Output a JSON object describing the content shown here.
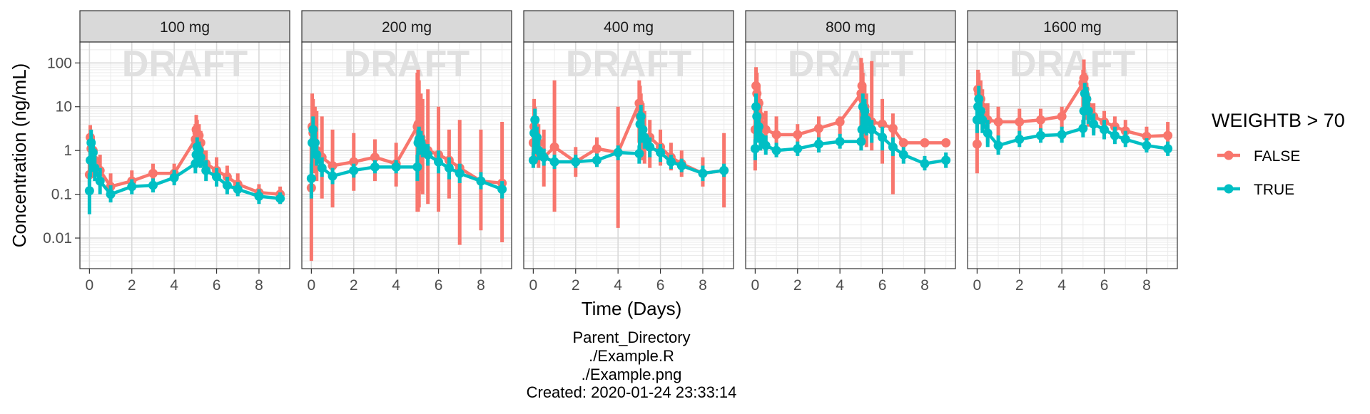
{
  "chart_data": {
    "type": "line",
    "title": "",
    "xlabel": "Time (Days)",
    "ylabel": "Concentration (ng/mL)",
    "y_scale": "log10",
    "ylim": [
      0.002,
      300
    ],
    "xlim": [
      -0.45,
      9.45
    ],
    "x_ticks": [
      0,
      2,
      4,
      6,
      8
    ],
    "x_tick_labels": [
      "0",
      "2",
      "4",
      "6",
      "8"
    ],
    "y_ticks": [
      0.01,
      0.1,
      1,
      10,
      100
    ],
    "y_tick_labels": [
      "0.01",
      "0.1",
      "1",
      "10",
      "100"
    ],
    "grid": true,
    "watermark": "DRAFT",
    "error_bars": true,
    "legend": {
      "title": "WEIGHTB > 70",
      "position": "right",
      "entries": [
        "FALSE",
        "TRUE"
      ]
    },
    "series_colors": {
      "FALSE": "#F8766D",
      "TRUE": "#00BFC4"
    },
    "panels": [
      {
        "label": "100 mg",
        "series": [
          {
            "name": "FALSE",
            "x": [
              0,
              0.04,
              0.08,
              0.17,
              0.25,
              0.5,
              1,
              2,
              3,
              4,
              5,
              5.04,
              5.08,
              5.17,
              5.25,
              5.5,
              6,
              6.5,
              7,
              8,
              9
            ],
            "y": [
              0.28,
              2.0,
              1.1,
              1.0,
              0.6,
              0.35,
              0.15,
              0.2,
              0.3,
              0.3,
              1.8,
              3.0,
              2.5,
              2.2,
              1.5,
              0.5,
              0.35,
              0.25,
              0.17,
              0.11,
              0.1
            ],
            "ylo": [
              0.16,
              1.0,
              0.6,
              0.5,
              0.3,
              0.15,
              0.08,
              0.12,
              0.18,
              0.18,
              1.0,
              1.5,
              1.3,
              1.2,
              0.8,
              0.3,
              0.2,
              0.15,
              0.1,
              0.07,
              0.06
            ],
            "yhi": [
              0.5,
              3.8,
              2.0,
              2.0,
              1.2,
              0.8,
              0.3,
              0.35,
              0.5,
              0.5,
              4.0,
              6.5,
              5.0,
              4.0,
              2.8,
              1.0,
              0.7,
              0.45,
              0.3,
              0.17,
              0.15
            ]
          },
          {
            "name": "TRUE",
            "x": [
              0,
              0.04,
              0.08,
              0.17,
              0.25,
              0.5,
              1,
              2,
              3,
              4,
              5,
              5.04,
              5.08,
              5.17,
              5.25,
              5.5,
              6,
              6.5,
              7,
              8,
              9
            ],
            "y": [
              0.12,
              0.6,
              1.5,
              0.9,
              0.4,
              0.2,
              0.1,
              0.15,
              0.16,
              0.24,
              0.5,
              0.8,
              1.2,
              1.0,
              0.7,
              0.35,
              0.25,
              0.16,
              0.13,
              0.09,
              0.08
            ],
            "ylo": [
              0.035,
              0.25,
              0.6,
              0.4,
              0.2,
              0.1,
              0.065,
              0.1,
              0.11,
              0.16,
              0.3,
              0.5,
              0.7,
              0.6,
              0.4,
              0.2,
              0.15,
              0.1,
              0.09,
              0.06,
              0.06
            ],
            "yhi": [
              0.3,
              1.4,
              3.0,
              1.8,
              0.8,
              0.4,
              0.16,
              0.22,
              0.23,
              0.36,
              0.8,
              1.3,
              2.0,
              1.6,
              1.1,
              0.6,
              0.4,
              0.25,
              0.19,
              0.13,
              0.11
            ]
          }
        ]
      },
      {
        "label": "200 mg",
        "series": [
          {
            "name": "FALSE",
            "x": [
              0,
              0.04,
              0.08,
              0.17,
              0.25,
              0.5,
              1,
              2,
              3,
              4,
              5,
              5.04,
              5.08,
              5.17,
              5.25,
              5.5,
              6,
              6.5,
              7,
              8,
              9
            ],
            "y": [
              0.14,
              3.5,
              2.5,
              1.5,
              1.0,
              0.7,
              0.45,
              0.55,
              0.7,
              0.5,
              3.5,
              4.0,
              3.0,
              2.0,
              1.5,
              1.0,
              0.8,
              0.6,
              0.4,
              0.2,
              0.18
            ],
            "ylo": [
              0.003,
              0.5,
              0.4,
              0.3,
              0.2,
              0.08,
              0.05,
              0.12,
              0.2,
              0.15,
              0.04,
              0.04,
              0.05,
              0.12,
              0.1,
              0.06,
              0.04,
              0.08,
              0.007,
              0.015,
              0.008
            ],
            "yhi": [
              2.0,
              20,
              15,
              10,
              8,
              6,
              3,
              2.5,
              1.8,
              1.5,
              60,
              70,
              40,
              20,
              15,
              25,
              10,
              3,
              5,
              3,
              4.5
            ]
          },
          {
            "name": "TRUE",
            "x": [
              0,
              0.04,
              0.08,
              0.17,
              0.25,
              0.5,
              1,
              2,
              3,
              4,
              5,
              5.04,
              5.08,
              5.17,
              5.25,
              5.5,
              6,
              6.5,
              7,
              8,
              9
            ],
            "y": [
              0.23,
              1.5,
              3.0,
              1.5,
              0.8,
              0.4,
              0.26,
              0.35,
              0.42,
              0.42,
              0.42,
              1.5,
              1.8,
              1.5,
              1.2,
              0.8,
              0.55,
              0.4,
              0.3,
              0.2,
              0.13
            ],
            "ylo": [
              0.08,
              0.7,
              1.3,
              0.8,
              0.45,
              0.25,
              0.17,
              0.24,
              0.3,
              0.3,
              0.2,
              0.8,
              1.0,
              0.8,
              0.7,
              0.45,
              0.3,
              0.22,
              0.18,
              0.13,
              0.08
            ],
            "yhi": [
              0.5,
              3.0,
              6.0,
              3.0,
              1.5,
              0.7,
              0.4,
              0.5,
              0.6,
              0.6,
              0.8,
              3.0,
              3.5,
              2.8,
              2.2,
              1.4,
              1.0,
              0.7,
              0.5,
              0.32,
              0.2
            ]
          }
        ]
      },
      {
        "label": "400 mg",
        "series": [
          {
            "name": "FALSE",
            "x": [
              0,
              0.04,
              0.08,
              0.17,
              0.25,
              0.5,
              1,
              2,
              3,
              4,
              5,
              5.04,
              5.08,
              5.17,
              5.25,
              5.5,
              6,
              6.5,
              7,
              8,
              9
            ],
            "y": [
              1.5,
              3.5,
              2.5,
              2.0,
              1.5,
              0.7,
              1.2,
              0.55,
              1.1,
              0.9,
              12,
              6.0,
              4.0,
              3.0,
              2.0,
              2.0,
              1.2,
              0.7,
              0.5,
              0.3,
              0.35
            ],
            "ylo": [
              0.6,
              0.8,
              0.6,
              0.5,
              0.4,
              0.15,
              0.04,
              0.25,
              0.55,
              0.017,
              1.5,
              1.0,
              0.8,
              0.6,
              0.5,
              0.4,
              0.45,
              0.35,
              0.25,
              0.15,
              0.05
            ],
            "yhi": [
              4,
              15,
              10,
              6,
              4,
              3,
              40,
              1.2,
              2.0,
              10,
              40,
              30,
              20,
              12,
              8,
              5,
              3,
              1.5,
              1.0,
              0.7,
              2.5
            ]
          },
          {
            "name": "TRUE",
            "x": [
              0,
              0.04,
              0.08,
              0.17,
              0.25,
              0.5,
              1,
              2,
              3,
              4,
              5,
              5.04,
              5.08,
              5.17,
              5.25,
              5.5,
              6,
              6.5,
              7,
              8,
              9
            ],
            "y": [
              0.6,
              2.5,
              5.0,
              2.0,
              1.0,
              0.7,
              0.55,
              0.55,
              0.6,
              0.9,
              0.85,
              4.0,
              6.0,
              3.0,
              2.0,
              1.2,
              0.9,
              0.55,
              0.45,
              0.3,
              0.35
            ],
            "ylo": [
              0.4,
              1.2,
              2.5,
              1.0,
              0.6,
              0.45,
              0.38,
              0.4,
              0.42,
              0.6,
              0.5,
              2.0,
              3.0,
              1.5,
              1.1,
              0.7,
              0.55,
              0.38,
              0.32,
              0.2,
              0.25
            ],
            "yhi": [
              0.9,
              5.0,
              9.0,
              3.5,
              1.8,
              1.1,
              0.8,
              0.8,
              0.85,
              1.3,
              1.3,
              8.0,
              11.0,
              5.5,
              3.5,
              2.0,
              1.4,
              0.8,
              0.65,
              0.45,
              0.5
            ]
          }
        ]
      },
      {
        "label": "800 mg",
        "series": [
          {
            "name": "FALSE",
            "x": [
              0,
              0.04,
              0.08,
              0.17,
              0.25,
              0.5,
              1,
              2,
              3,
              4,
              5,
              5.04,
              5.08,
              5.17,
              5.25,
              5.5,
              6,
              6.5,
              7,
              8,
              9
            ],
            "y": [
              3.0,
              30,
              20,
              12,
              6,
              3,
              2.3,
              2.3,
              3.2,
              4.5,
              20,
              30,
              15,
              10,
              6,
              4.5,
              4.0,
              3.2,
              1.5,
              1.5,
              1.5
            ],
            "ylo": [
              0.35,
              5,
              3,
              2,
              1.5,
              1.0,
              1.0,
              1.5,
              1.8,
              2.2,
              1.5,
              3,
              2,
              1.5,
              1.2,
              1.0,
              0.5,
              0.1,
              1.4,
              1.4,
              1.4
            ],
            "yhi": [
              8,
              80,
              60,
              30,
              15,
              8,
              6,
              4,
              6,
              6,
              130,
              100,
              60,
              30,
              20,
              110,
              15,
              7,
              1.8,
              1.8,
              1.8
            ]
          },
          {
            "name": "TRUE",
            "x": [
              0,
              0.04,
              0.08,
              0.17,
              0.25,
              0.5,
              1,
              2,
              3,
              4,
              5,
              5.04,
              5.08,
              5.17,
              5.25,
              5.5,
              6,
              6.5,
              7,
              8,
              9
            ],
            "y": [
              1.1,
              10,
              6.0,
              3.5,
              2.0,
              1.3,
              1.0,
              1.1,
              1.4,
              1.6,
              1.6,
              3.0,
              10.0,
              8.0,
              5.0,
              3.0,
              2.0,
              1.2,
              0.8,
              0.5,
              0.6
            ],
            "ylo": [
              0.6,
              4,
              2.5,
              1.5,
              1.0,
              0.8,
              0.7,
              0.75,
              0.9,
              1.1,
              1.0,
              1.5,
              4.0,
              3.5,
              2.2,
              1.5,
              1.0,
              0.75,
              0.5,
              0.35,
              0.4
            ],
            "yhi": [
              1.8,
              20,
              12,
              7.0,
              4.0,
              2.2,
              1.5,
              1.6,
              2.0,
              2.4,
              2.4,
              6.0,
              20,
              15,
              9.0,
              5.0,
              3.5,
              2.0,
              1.2,
              0.75,
              0.9
            ]
          }
        ]
      },
      {
        "label": "1600 mg",
        "series": [
          {
            "name": "FALSE",
            "x": [
              0,
              0.04,
              0.08,
              0.17,
              0.25,
              0.5,
              1,
              2,
              3,
              4,
              5,
              5.04,
              5.08,
              5.17,
              5.25,
              5.5,
              6,
              6.5,
              7,
              8,
              9
            ],
            "y": [
              1.4,
              25,
              20,
              15,
              10,
              5,
              4.5,
              4.5,
              5.0,
              6.0,
              35,
              45,
              25,
              15,
              10,
              6,
              4.5,
              3.5,
              2.8,
              2.1,
              2.2
            ],
            "ylo": [
              0.3,
              6,
              5,
              4,
              3,
              1.5,
              1.5,
              2.0,
              2.5,
              3.2,
              10,
              15,
              8,
              5,
              3.5,
              2.5,
              2.0,
              1.8,
              1.6,
              1.2,
              1.0
            ],
            "yhi": [
              4,
              70,
              60,
              40,
              25,
              12,
              10,
              9,
              9,
              10,
              70,
              120,
              60,
              35,
              20,
              12,
              8,
              6,
              5,
              3.5,
              4.5
            ]
          },
          {
            "name": "TRUE",
            "x": [
              0,
              0.04,
              0.08,
              0.17,
              0.25,
              0.5,
              1,
              2,
              3,
              4,
              5,
              5.04,
              5.08,
              5.17,
              5.25,
              5.5,
              6,
              6.5,
              7,
              8,
              9
            ],
            "y": [
              5.0,
              10,
              15,
              8.0,
              5.0,
              2.5,
              1.3,
              1.8,
              2.2,
              2.3,
              3.2,
              8.0,
              20,
              15,
              8.0,
              4.0,
              3.0,
              2.2,
              1.8,
              1.3,
              1.1
            ],
            "ylo": [
              2.5,
              5,
              8,
              4.0,
              2.5,
              1.2,
              0.8,
              1.2,
              1.5,
              1.5,
              2.0,
              4.0,
              10,
              7.0,
              4.0,
              2.2,
              1.8,
              1.4,
              1.2,
              0.9,
              0.75
            ],
            "yhi": [
              9.0,
              18,
              30,
              15,
              9.0,
              5.0,
              2.2,
              2.8,
              3.2,
              3.5,
              5.0,
              15,
              35,
              28,
              15,
              7.0,
              5.0,
              3.5,
              2.8,
              1.9,
              1.6
            ]
          }
        ]
      }
    ]
  },
  "footer": {
    "line1": "Parent_Directory",
    "line2": "./Example.R",
    "line3": "./Example.png",
    "line4": "Created: 2020-01-24 23:33:14"
  }
}
